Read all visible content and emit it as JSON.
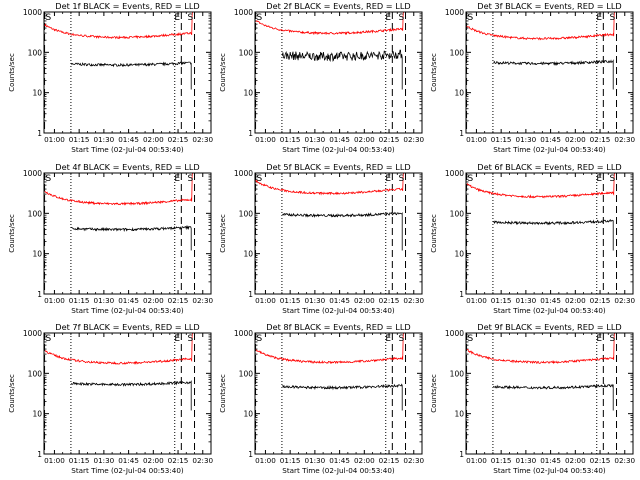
{
  "figure": {
    "ylabel": "Counts/sec",
    "xlabel": "Start Time (02-Jul-04 00:53:40)",
    "colors": {
      "events": "#000000",
      "lld": "#ff0000",
      "axes": "#000000"
    }
  },
  "chart_data": [
    {
      "type": "line",
      "title": "Det 1f BLACK = Events, RED = LLD",
      "yscale": "log",
      "ylim": [
        1,
        1000
      ],
      "yticks": [
        "1",
        "10",
        "100",
        "1000"
      ],
      "xticks": [
        "01:00",
        "01:15",
        "01:30",
        "01:45",
        "02:00",
        "02:15",
        "02:30"
      ],
      "markers": [
        "E",
        "S"
      ],
      "lld_level": 300,
      "events_level": 55,
      "x_range": [
        "00:53:40",
        "02:35"
      ],
      "x_data_end": "02:23",
      "dashed_lines": [
        "00:54",
        "02:17",
        "02:25"
      ],
      "dotted_lines": [
        "01:10",
        "02:13"
      ]
    },
    {
      "type": "line",
      "title": "Det 2f BLACK = Events, RED = LLD",
      "yscale": "log",
      "ylim": [
        1,
        1000
      ],
      "yticks": [
        "1",
        "10",
        "100",
        "1000"
      ],
      "xticks": [
        "01:00",
        "01:15",
        "01:30",
        "01:45",
        "02:00",
        "02:15",
        "02:30"
      ],
      "markers": [
        "E",
        "S"
      ],
      "lld_level": 380,
      "events_level": 90,
      "x_range": [
        "00:53:40",
        "02:35"
      ],
      "x_data_end": "02:23",
      "dashed_lines": [
        "00:54",
        "02:17",
        "02:25"
      ],
      "dotted_lines": [
        "01:10",
        "02:13"
      ]
    },
    {
      "type": "line",
      "title": "Det 3f BLACK = Events, RED = LLD",
      "yscale": "log",
      "ylim": [
        1,
        1000
      ],
      "yticks": [
        "1",
        "10",
        "100",
        "1000"
      ],
      "xticks": [
        "01:00",
        "01:15",
        "01:30",
        "01:45",
        "02:00",
        "02:15",
        "02:30"
      ],
      "markers": [
        "E",
        "S"
      ],
      "lld_level": 280,
      "events_level": 60,
      "x_range": [
        "00:53:40",
        "02:35"
      ],
      "x_data_end": "02:23",
      "dashed_lines": [
        "00:54",
        "02:17",
        "02:25"
      ],
      "dotted_lines": [
        "01:10",
        "02:13"
      ]
    },
    {
      "type": "line",
      "title": "Det 4f BLACK = Events, RED = LLD",
      "yscale": "log",
      "ylim": [
        1,
        1000
      ],
      "yticks": [
        "1",
        "10",
        "100",
        "1000"
      ],
      "xticks": [
        "01:00",
        "01:15",
        "01:30",
        "01:45",
        "02:00",
        "02:15",
        "02:30"
      ],
      "markers": [
        "E",
        "S"
      ],
      "lld_level": 220,
      "events_level": 45,
      "x_range": [
        "00:53:40",
        "02:35"
      ],
      "x_data_end": "02:23",
      "dashed_lines": [
        "00:54",
        "02:17",
        "02:25"
      ],
      "dotted_lines": [
        "01:10",
        "02:13"
      ]
    },
    {
      "type": "line",
      "title": "Det 5f BLACK = Events, RED = LLD",
      "yscale": "log",
      "ylim": [
        1,
        1000
      ],
      "yticks": [
        "1",
        "10",
        "100",
        "1000"
      ],
      "xticks": [
        "01:00",
        "01:15",
        "01:30",
        "01:45",
        "02:00",
        "02:15",
        "02:30"
      ],
      "markers": [
        "E",
        "S"
      ],
      "lld_level": 400,
      "events_level": 100,
      "x_range": [
        "00:53:40",
        "02:35"
      ],
      "x_data_end": "02:23",
      "dashed_lines": [
        "00:54",
        "02:17",
        "02:25"
      ],
      "dotted_lines": [
        "01:10",
        "02:13"
      ]
    },
    {
      "type": "line",
      "title": "Det 6f BLACK = Events, RED = LLD",
      "yscale": "log",
      "ylim": [
        1,
        1000
      ],
      "yticks": [
        "1",
        "10",
        "100",
        "1000"
      ],
      "xticks": [
        "01:00",
        "01:15",
        "01:30",
        "01:45",
        "02:00",
        "02:15",
        "02:30"
      ],
      "markers": [
        "E",
        "S"
      ],
      "lld_level": 330,
      "events_level": 65,
      "x_range": [
        "00:53:40",
        "02:35"
      ],
      "x_data_end": "02:23",
      "dashed_lines": [
        "00:54",
        "02:17",
        "02:25"
      ],
      "dotted_lines": [
        "01:10",
        "02:13"
      ]
    },
    {
      "type": "line",
      "title": "Det 7f BLACK = Events, RED = LLD",
      "yscale": "log",
      "ylim": [
        1,
        1000
      ],
      "yticks": [
        "1",
        "10",
        "100",
        "1000"
      ],
      "xticks": [
        "01:00",
        "01:15",
        "01:30",
        "01:45",
        "02:00",
        "02:15",
        "02:30"
      ],
      "markers": [
        "E",
        "S"
      ],
      "lld_level": 230,
      "events_level": 60,
      "x_range": [
        "00:53:40",
        "02:35"
      ],
      "x_data_end": "02:23",
      "dashed_lines": [
        "00:54",
        "02:17",
        "02:25"
      ],
      "dotted_lines": [
        "01:10",
        "02:13"
      ]
    },
    {
      "type": "line",
      "title": "Det 8f BLACK = Events, RED = LLD",
      "yscale": "log",
      "ylim": [
        1,
        1000
      ],
      "yticks": [
        "1",
        "10",
        "100",
        "1000"
      ],
      "xticks": [
        "01:00",
        "01:15",
        "01:30",
        "01:45",
        "02:00",
        "02:15",
        "02:30"
      ],
      "markers": [
        "E",
        "S"
      ],
      "lld_level": 240,
      "events_level": 50,
      "x_range": [
        "00:53:40",
        "02:35"
      ],
      "x_data_end": "02:23",
      "dashed_lines": [
        "00:54",
        "02:17",
        "02:25"
      ],
      "dotted_lines": [
        "01:10",
        "02:13"
      ]
    },
    {
      "type": "line",
      "title": "Det 9f BLACK = Events, RED = LLD",
      "yscale": "log",
      "ylim": [
        1,
        1000
      ],
      "yticks": [
        "1",
        "10",
        "100",
        "1000"
      ],
      "xticks": [
        "01:00",
        "01:15",
        "01:30",
        "01:45",
        "02:00",
        "02:15",
        "02:30"
      ],
      "markers": [
        "E",
        "S"
      ],
      "lld_level": 240,
      "events_level": 50,
      "x_range": [
        "00:53:40",
        "02:35"
      ],
      "x_data_end": "02:23",
      "dashed_lines": [
        "00:54",
        "02:17",
        "02:25"
      ],
      "dotted_lines": [
        "01:10",
        "02:13"
      ]
    }
  ]
}
